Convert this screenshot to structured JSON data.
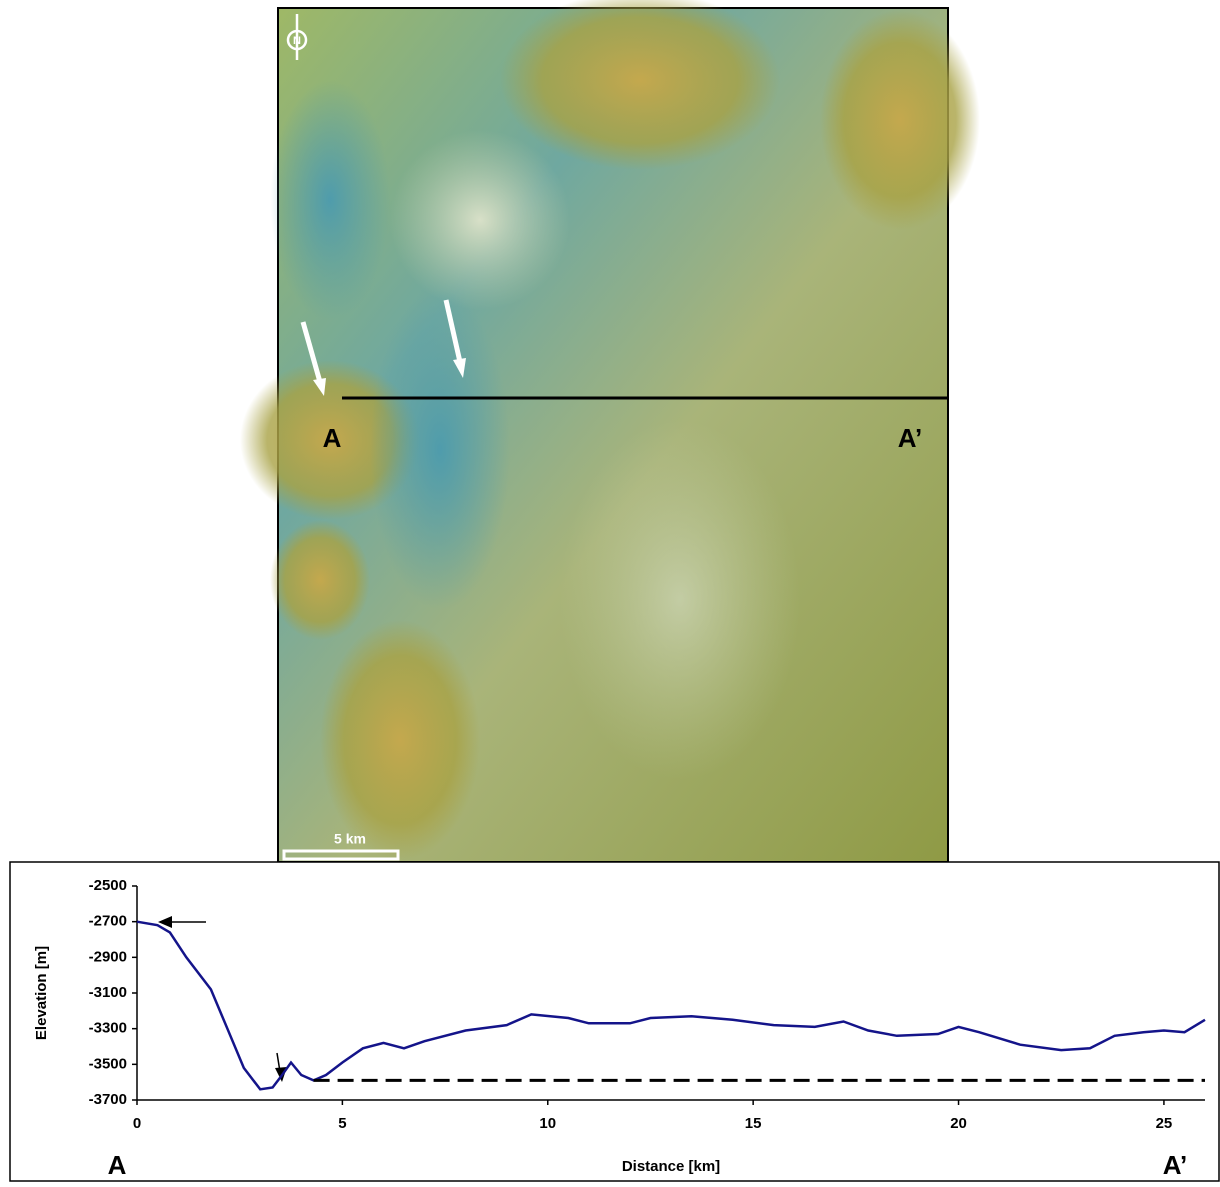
{
  "map": {
    "start_label": "A",
    "end_label": "A’",
    "scale_label": "5 km",
    "north_label": "N"
  },
  "chart_data": {
    "type": "line",
    "x_label": "Distance [km]",
    "y_label": "Elevation [m]",
    "start_label": "A",
    "end_label": "A’",
    "xlim": [
      0,
      26
    ],
    "xticks": [
      0,
      5,
      10,
      15,
      20,
      25
    ],
    "ylim": [
      -2500,
      -3700
    ],
    "yticks": [
      -2500,
      -2700,
      -2900,
      -3100,
      -3300,
      -3500,
      -3700
    ],
    "series": [
      {
        "color": "#14148a",
        "x": [
          0,
          0.5,
          0.8,
          1.2,
          1.8,
          2.2,
          2.6,
          3.0,
          3.3,
          3.5,
          3.75,
          4.0,
          4.3,
          4.6,
          5.0,
          5.5,
          6.0,
          6.5,
          7.0,
          8.0,
          9.0,
          9.6,
          10.5,
          11.0,
          12.0,
          12.5,
          13.5,
          14.5,
          15.5,
          16.5,
          17.2,
          17.8,
          18.5,
          19.5,
          20.0,
          20.5,
          21.5,
          22.5,
          23.2,
          23.8,
          24.5,
          25.0,
          25.5,
          26.0
        ],
        "values": [
          -2700,
          -2720,
          -2760,
          -2900,
          -3080,
          -3300,
          -3520,
          -3640,
          -3630,
          -3570,
          -3490,
          -3560,
          -3590,
          -3560,
          -3490,
          -3410,
          -3380,
          -3410,
          -3370,
          -3310,
          -3280,
          -3220,
          -3240,
          -3270,
          -3270,
          -3240,
          -3230,
          -3250,
          -3280,
          -3290,
          -3260,
          -3310,
          -3340,
          -3330,
          -3290,
          -3320,
          -3390,
          -3420,
          -3410,
          -3340,
          -3320,
          -3310,
          -3320,
          -3250
        ]
      },
      {
        "color": "#000000",
        "dashed": true,
        "x": [
          4.3,
          26
        ],
        "values": [
          -3590,
          -3590
        ]
      }
    ]
  }
}
